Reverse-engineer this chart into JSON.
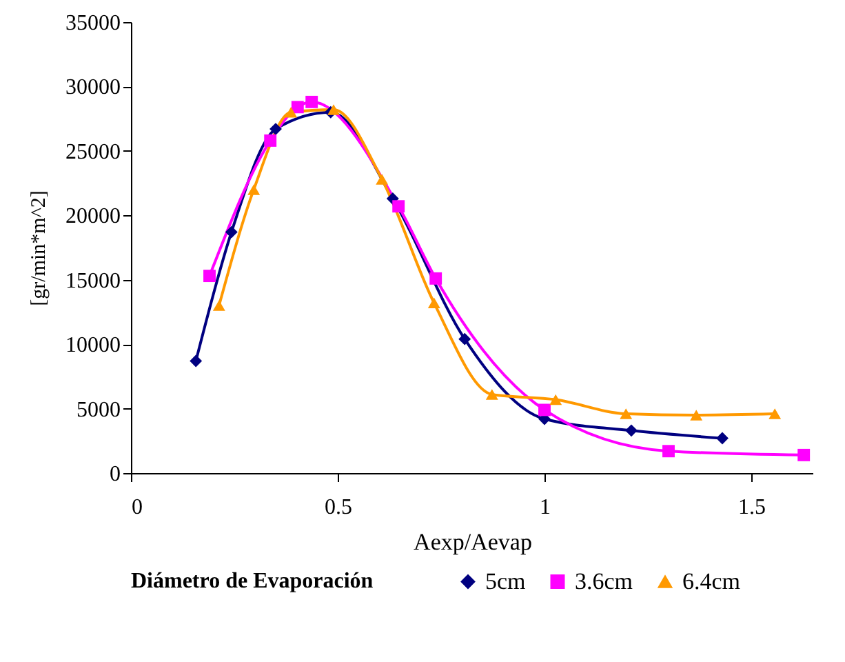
{
  "chart_data": {
    "type": "line",
    "xlabel": "Aexp/Aevap",
    "ylabel": "[gr/min*m^2]",
    "legend_title": "Diámetro de Evaporación",
    "legend": "bottom",
    "grid": false,
    "line_style": "solid",
    "xlim": [
      0,
      1.65
    ],
    "xticks": [
      0,
      0.5,
      1,
      1.5
    ],
    "ylim": [
      0,
      35000
    ],
    "yticks": [
      0,
      5000,
      10000,
      15000,
      20000,
      25000,
      30000,
      35000
    ],
    "series": [
      {
        "name": "5cm",
        "color": "#000080",
        "marker": "diamond",
        "x": [
          0.157,
          0.243,
          0.35,
          0.483,
          0.633,
          0.807,
          1.0,
          1.21,
          1.43
        ],
        "values": [
          8700,
          18700,
          26700,
          28000,
          21300,
          10400,
          4200,
          3300,
          2700
        ]
      },
      {
        "name": "3.6cm",
        "color": "#ff00ff",
        "marker": "square",
        "x": [
          0.19,
          0.337,
          0.403,
          0.437,
          0.647,
          0.737,
          1.0,
          1.3,
          1.627
        ],
        "values": [
          15300,
          25800,
          28400,
          28800,
          20700,
          15100,
          4900,
          1700,
          1400
        ]
      },
      {
        "name": "6.4cm",
        "color": "#ff9900",
        "marker": "triangle",
        "x": [
          0.213,
          0.297,
          0.387,
          0.49,
          0.607,
          0.733,
          0.873,
          1.027,
          1.197,
          1.367,
          1.557
        ],
        "values": [
          13000,
          22000,
          28000,
          28200,
          22800,
          13200,
          6100,
          5700,
          4600,
          4500,
          4600
        ]
      }
    ]
  }
}
